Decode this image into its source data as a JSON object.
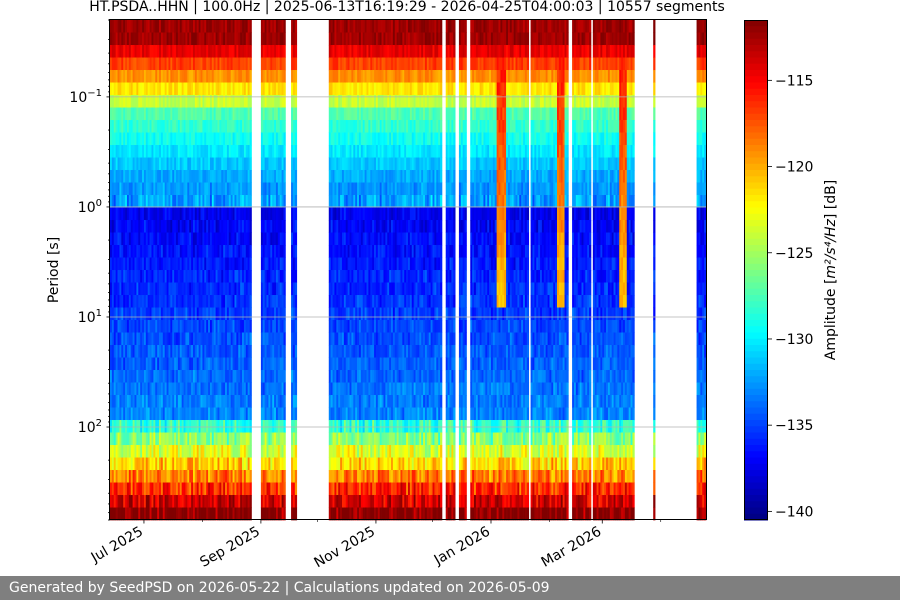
{
  "chart_data": {
    "type": "heatmap",
    "title": "HT.PSDA..HHN | 100.0Hz | 2025-06-13T16:19:29 - 2026-04-25T04:00:03 | 10557 segments",
    "xlabel": "",
    "ylabel": "Period [s]",
    "y_scale": "log",
    "x_range": [
      "2025-06-13",
      "2026-04-25"
    ],
    "ylim": [
      0.02,
      700
    ],
    "x_ticks": [
      {
        "date": "2025-07-01",
        "label": "Jul 2025"
      },
      {
        "date": "2025-09-01",
        "label": "Sep 2025"
      },
      {
        "date": "2025-11-01",
        "label": "Nov 2025"
      },
      {
        "date": "2026-01-01",
        "label": "Jan 2026"
      },
      {
        "date": "2026-03-01",
        "label": "Mar 2026"
      }
    ],
    "y_ticks": [
      {
        "value": 0.1,
        "base": "10",
        "exp": "−1"
      },
      {
        "value": 1,
        "base": "10",
        "exp": "0"
      },
      {
        "value": 10,
        "base": "10",
        "exp": "1"
      },
      {
        "value": 100,
        "base": "10",
        "exp": "2"
      }
    ],
    "grid": true,
    "colorbar": {
      "colormap": "jet",
      "label_prefix": "Amplitude [",
      "label_math": "m²/s⁴/Hz",
      "label_suffix": "] [dB]",
      "range": [
        -140.5,
        -111.5
      ],
      "ticks": [
        -115,
        -120,
        -125,
        -130,
        -135,
        -140
      ],
      "tick_labels": [
        "−115",
        "−120",
        "−125",
        "−130",
        "−135",
        "−140"
      ]
    },
    "data_gaps": [
      [
        "2025-08-27",
        "2025-09-01"
      ],
      [
        "2025-09-14",
        "2025-09-17"
      ],
      [
        "2025-09-20",
        "2025-10-07"
      ],
      [
        "2025-12-06",
        "2025-12-08"
      ],
      [
        "2025-12-13",
        "2025-12-15"
      ],
      [
        "2025-12-19",
        "2025-12-21"
      ],
      [
        "2026-01-21",
        "2026-01-22"
      ],
      [
        "2026-02-11",
        "2026-02-13"
      ],
      [
        "2026-02-23",
        "2026-02-24"
      ],
      [
        "2026-03-18",
        "2026-03-28"
      ],
      [
        "2026-03-29",
        "2026-04-20"
      ]
    ],
    "high_noise_periods": [
      [
        "2026-01-04",
        "2026-01-09"
      ],
      [
        "2026-02-05",
        "2026-02-09"
      ],
      [
        "2026-03-10",
        "2026-03-14"
      ]
    ]
  },
  "footer": {
    "text": "Generated by SeedPSD on 2026-05-22 | Calculations updated on 2026-05-09"
  }
}
